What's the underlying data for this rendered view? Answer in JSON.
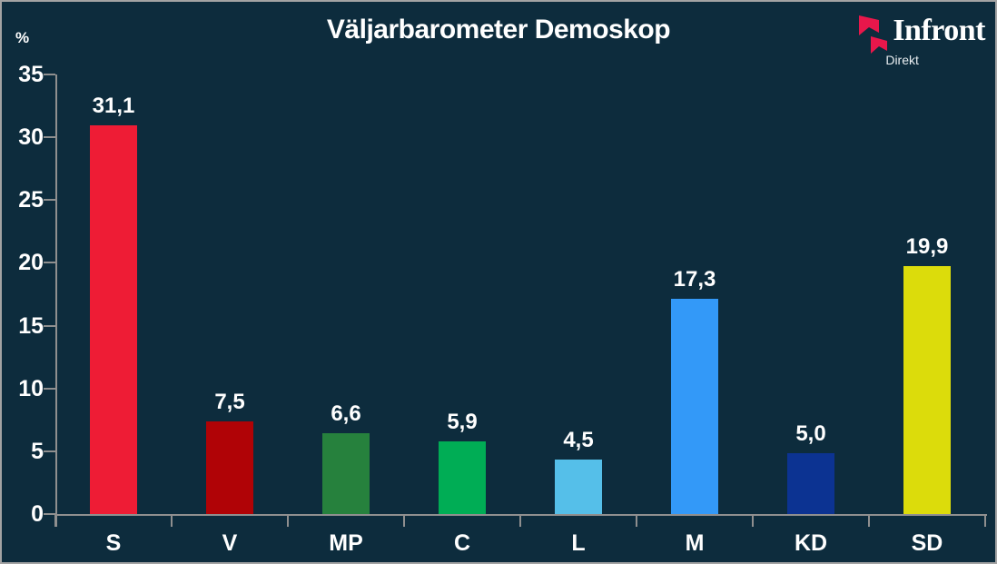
{
  "title": "Väljarbarometer Demoskop",
  "unit_label": "%",
  "logo": {
    "brand": "Infront",
    "sub": "Direkt",
    "icon": "infront-flag-icon",
    "icon_color": "#e8174b"
  },
  "colors": {
    "background": "#0d2c3d",
    "border": "#a3a3a3",
    "axis": "#8f8f8f",
    "text": "#ffffff"
  },
  "chart_data": {
    "type": "bar",
    "title": "Väljarbarometer Demoskop",
    "xlabel": "",
    "ylabel": "%",
    "categories": [
      "S",
      "V",
      "MP",
      "C",
      "L",
      "M",
      "KD",
      "SD"
    ],
    "values": [
      31.1,
      7.5,
      6.6,
      5.9,
      4.5,
      17.3,
      5.0,
      19.9
    ],
    "value_labels": [
      "31,1",
      "7,5",
      "6,6",
      "5,9",
      "4,5",
      "17,3",
      "5,0",
      "19,9"
    ],
    "bar_colors": [
      "#ee1c35",
      "#b00306",
      "#26813d",
      "#00ad55",
      "#55bfe9",
      "#3399f8",
      "#0c3392",
      "#dcdc0b"
    ],
    "ylim": [
      0,
      35
    ],
    "yticks": [
      0,
      5,
      10,
      15,
      20,
      25,
      30,
      35
    ],
    "grid": false,
    "legend": false
  }
}
